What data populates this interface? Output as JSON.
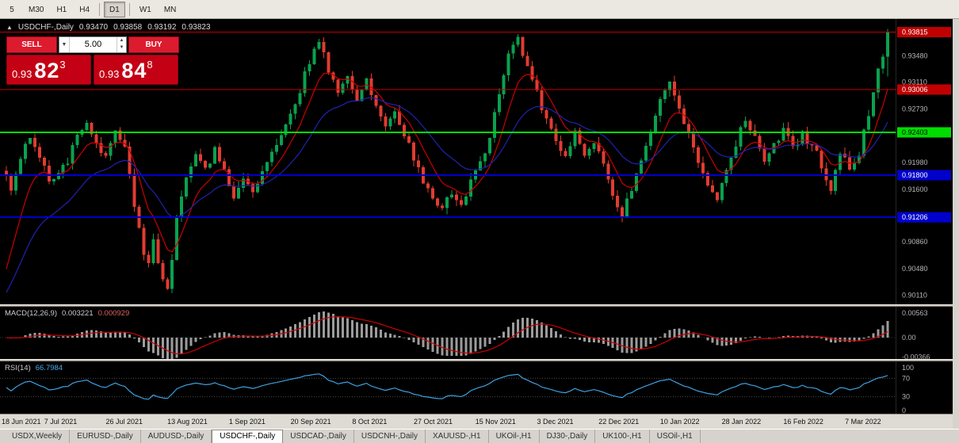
{
  "toolbar": {
    "timeframes": [
      {
        "label": "5",
        "active": false
      },
      {
        "label": "M30",
        "active": false
      },
      {
        "label": "H1",
        "active": false
      },
      {
        "label": "H4",
        "active": false
      },
      {
        "label": "D1",
        "active": true
      },
      {
        "label": "W1",
        "active": false
      },
      {
        "label": "MN",
        "active": false
      }
    ]
  },
  "title_bar": {
    "collapse_arrow": "▲",
    "symbol": "USDCHF-,Daily",
    "open": "0.93470",
    "high": "0.93858",
    "low": "0.93192",
    "close": "0.93823"
  },
  "trade_panel": {
    "sell_label": "SELL",
    "buy_label": "BUY",
    "volume": "5.00",
    "volume_dropdown_icon": "▼",
    "spinner_up_icon": "▲",
    "spinner_down_icon": "▼",
    "sell_price": {
      "big": "0.93",
      "pips": "82",
      "frac": "3"
    },
    "buy_price": {
      "big": "0.93",
      "pips": "84",
      "frac": "8"
    }
  },
  "price_axis": {
    "gridline_labels": [
      {
        "text": "0.93480",
        "value": 0.9348
      },
      {
        "text": "0.93110",
        "value": 0.9311
      },
      {
        "text": "0.92730",
        "value": 0.9273
      },
      {
        "text": "0.91980",
        "value": 0.9198
      },
      {
        "text": "0.91600",
        "value": 0.916
      },
      {
        "text": "0.90860",
        "value": 0.9086
      },
      {
        "text": "0.90480",
        "value": 0.9048
      },
      {
        "text": "0.90110",
        "value": 0.9011
      }
    ],
    "badges": [
      {
        "text": "0.93815",
        "value": 0.93815,
        "color": "#c00000",
        "text_color": "#ffffff"
      },
      {
        "text": "0.93006",
        "value": 0.93006,
        "color": "#c00000",
        "text_color": "#ffffff"
      },
      {
        "text": "0.92403",
        "value": 0.92403,
        "color": "#00dd00",
        "text_color": "#000000"
      },
      {
        "text": "0.91800",
        "value": 0.918,
        "color": "#0000cc",
        "text_color": "#ffffff"
      },
      {
        "text": "0.91206",
        "value": 0.91206,
        "color": "#0000cc",
        "text_color": "#ffffff"
      }
    ]
  },
  "macd_panel": {
    "label": "MACD(12,26,9)",
    "value_main": "0.003221",
    "value_signal": "0.000929",
    "axis": [
      {
        "text": "0.00563",
        "value": 0.00563
      },
      {
        "text": "0.00",
        "value": 0
      },
      {
        "text": "-0.00366",
        "value": -0.00366
      }
    ]
  },
  "rsi_panel": {
    "label": "RSI(14)",
    "value": "66.7984",
    "axis": [
      {
        "text": "100",
        "value": 100
      },
      {
        "text": "70",
        "value": 70
      },
      {
        "text": "30",
        "value": 30
      },
      {
        "text": "0",
        "value": 0
      }
    ],
    "levels": [
      70,
      30
    ]
  },
  "x_axis": {
    "dates": [
      "18 Jun 2021",
      "7 Jul 2021",
      "26 Jul 2021",
      "13 Aug 2021",
      "1 Sep 2021",
      "20 Sep 2021",
      "8 Oct 2021",
      "27 Oct 2021",
      "15 Nov 2021",
      "3 Dec 2021",
      "22 Dec 2021",
      "10 Jan 2022",
      "28 Jan 2022",
      "16 Feb 2022",
      "7 Mar 2022"
    ],
    "candle_spacing": 13
  },
  "tabs": [
    {
      "label": "USDX,Weekly",
      "active": false
    },
    {
      "label": "EURUSD-,Daily",
      "active": false
    },
    {
      "label": "AUDUSD-,Daily",
      "active": false
    },
    {
      "label": "USDCHF-,Daily",
      "active": true
    },
    {
      "label": "USDCAD-,Daily",
      "active": false
    },
    {
      "label": "USDCNH-,Daily",
      "active": false
    },
    {
      "label": "XAUUSD-,H1",
      "active": false
    },
    {
      "label": "UKOil-,H1",
      "active": false
    },
    {
      "label": "DJ30-,Daily",
      "active": false
    },
    {
      "label": "UK100-,H1",
      "active": false
    },
    {
      "label": "USOil-,H1",
      "active": false
    }
  ],
  "chart_data": {
    "type": "candlestick",
    "symbol": "USDCHF-",
    "timeframe": "Daily",
    "title": "USDCHF-,Daily",
    "ylim": [
      0.8998,
      0.94
    ],
    "candle_count": 187,
    "last_candle": [
      0.9347,
      0.93858,
      0.93192,
      0.93823
    ],
    "price_path": [
      [
        0,
        0.9185
      ],
      [
        1,
        0.916
      ],
      [
        3,
        0.9205
      ],
      [
        5,
        0.9232
      ],
      [
        7,
        0.921
      ],
      [
        9,
        0.917
      ],
      [
        11,
        0.9185
      ],
      [
        13,
        0.92
      ],
      [
        15,
        0.9242
      ],
      [
        17,
        0.9256
      ],
      [
        19,
        0.9225
      ],
      [
        21,
        0.9205
      ],
      [
        23,
        0.924
      ],
      [
        25,
        0.9215
      ],
      [
        26,
        0.9185
      ],
      [
        27,
        0.914
      ],
      [
        28,
        0.91
      ],
      [
        29,
        0.907
      ],
      [
        30,
        0.9055
      ],
      [
        31,
        0.9085
      ],
      [
        32,
        0.906
      ],
      [
        33,
        0.903
      ],
      [
        34,
        0.9022
      ],
      [
        35,
        0.906
      ],
      [
        36,
        0.912
      ],
      [
        37,
        0.9155
      ],
      [
        38,
        0.918
      ],
      [
        40,
        0.9212
      ],
      [
        42,
        0.9185
      ],
      [
        44,
        0.9215
      ],
      [
        46,
        0.919
      ],
      [
        48,
        0.915
      ],
      [
        50,
        0.9172
      ],
      [
        52,
        0.9158
      ],
      [
        54,
        0.9188
      ],
      [
        56,
        0.9208
      ],
      [
        58,
        0.9232
      ],
      [
        60,
        0.9268
      ],
      [
        62,
        0.93
      ],
      [
        64,
        0.9342
      ],
      [
        66,
        0.9368
      ],
      [
        68,
        0.933
      ],
      [
        70,
        0.9298
      ],
      [
        72,
        0.9322
      ],
      [
        74,
        0.9288
      ],
      [
        76,
        0.9312
      ],
      [
        78,
        0.9282
      ],
      [
        80,
        0.9252
      ],
      [
        82,
        0.9268
      ],
      [
        84,
        0.9238
      ],
      [
        86,
        0.9205
      ],
      [
        88,
        0.9172
      ],
      [
        90,
        0.9148
      ],
      [
        92,
        0.9132
      ],
      [
        94,
        0.9158
      ],
      [
        96,
        0.9135
      ],
      [
        98,
        0.9168
      ],
      [
        100,
        0.9198
      ],
      [
        102,
        0.9235
      ],
      [
        104,
        0.9295
      ],
      [
        106,
        0.9352
      ],
      [
        108,
        0.9372
      ],
      [
        110,
        0.9332
      ],
      [
        112,
        0.9295
      ],
      [
        114,
        0.9258
      ],
      [
        116,
        0.9225
      ],
      [
        118,
        0.9208
      ],
      [
        120,
        0.9238
      ],
      [
        122,
        0.921
      ],
      [
        124,
        0.9225
      ],
      [
        126,
        0.9192
      ],
      [
        128,
        0.9155
      ],
      [
        130,
        0.9122
      ],
      [
        132,
        0.9162
      ],
      [
        134,
        0.9205
      ],
      [
        136,
        0.9242
      ],
      [
        138,
        0.9282
      ],
      [
        140,
        0.9308
      ],
      [
        142,
        0.9272
      ],
      [
        144,
        0.9235
      ],
      [
        146,
        0.92
      ],
      [
        148,
        0.9168
      ],
      [
        150,
        0.9148
      ],
      [
        152,
        0.9185
      ],
      [
        154,
        0.9225
      ],
      [
        156,
        0.9262
      ],
      [
        158,
        0.9232
      ],
      [
        160,
        0.9198
      ],
      [
        162,
        0.9222
      ],
      [
        164,
        0.9245
      ],
      [
        166,
        0.9215
      ],
      [
        168,
        0.9238
      ],
      [
        170,
        0.9222
      ],
      [
        172,
        0.9195
      ],
      [
        174,
        0.9162
      ],
      [
        176,
        0.9212
      ],
      [
        178,
        0.9188
      ],
      [
        180,
        0.921
      ],
      [
        182,
        0.9268
      ],
      [
        183,
        0.9295
      ],
      [
        184,
        0.933
      ],
      [
        185,
        0.9347
      ],
      [
        186,
        0.93823
      ]
    ],
    "horizontal_lines": [
      {
        "value": 0.93815,
        "color": "#c00000",
        "width": 1
      },
      {
        "value": 0.93006,
        "color": "#c00000",
        "width": 1
      },
      {
        "value": 0.92403,
        "color": "#00dd00",
        "width": 2
      },
      {
        "value": 0.918,
        "color": "#0000cc",
        "width": 2
      },
      {
        "value": 0.91206,
        "color": "#0000cc",
        "width": 2
      }
    ],
    "overlays": [
      {
        "type": "ema",
        "period": 8,
        "color": "#cc0000",
        "seed": 0.901
      },
      {
        "type": "ema",
        "period": 21,
        "color": "#2121b0",
        "seed": 0.8998
      }
    ],
    "indicators": [
      {
        "type": "macd",
        "fast": 12,
        "slow": 26,
        "signal": 9,
        "histogram_color": "#9c9c9c",
        "signal_color": "#cc0000",
        "range": [
          -0.004,
          0.0058
        ],
        "current_main": 0.003221,
        "current_signal": 0.000929
      },
      {
        "type": "rsi",
        "period": 14,
        "color": "#3da0e0",
        "range": [
          0,
          100
        ],
        "levels": [
          70,
          30
        ],
        "current": 66.7984
      }
    ],
    "colors": {
      "up": "#0aa14e",
      "down": "#e03c31",
      "background": "#000000",
      "axis_text": "#b5b5b5"
    }
  }
}
